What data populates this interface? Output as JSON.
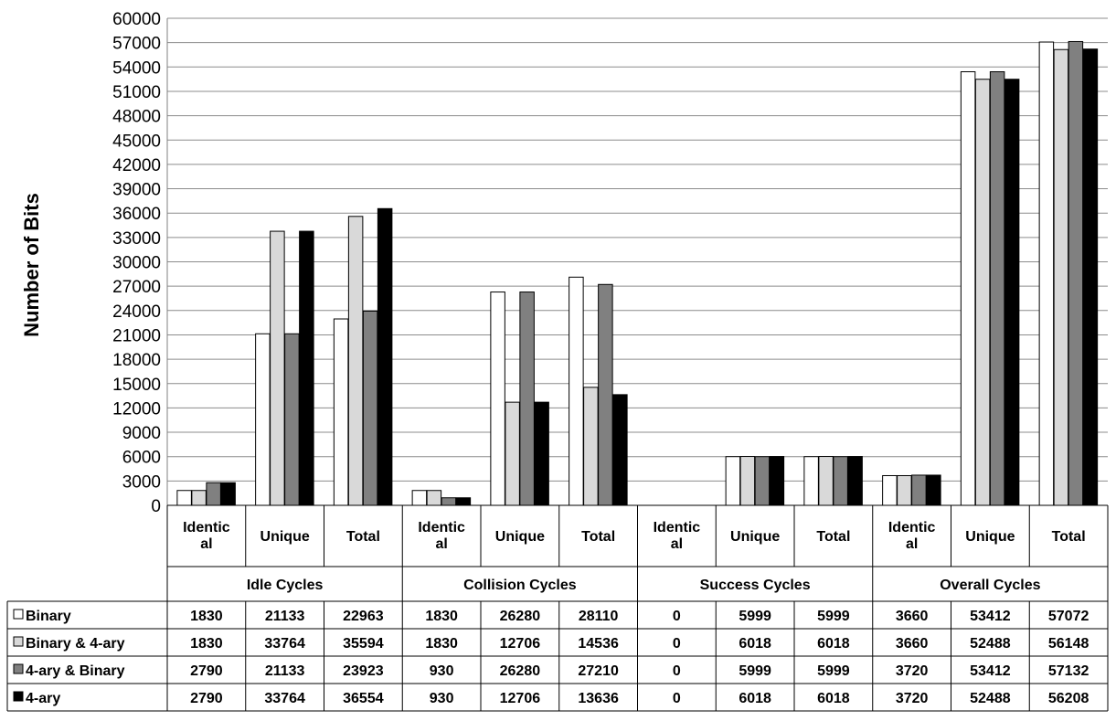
{
  "chart_data": {
    "type": "bar",
    "title": "",
    "xlabel": "",
    "ylabel": "Number of Bits",
    "ylim": [
      0,
      60000
    ],
    "ytick_step": 3000,
    "ytick_labels": [
      "0",
      "3000",
      "6000",
      "9000",
      "12000",
      "15000",
      "18000",
      "21000",
      "24000",
      "27000",
      "30000",
      "33000",
      "36000",
      "39000",
      "42000",
      "45000",
      "48000",
      "51000",
      "54000",
      "57000",
      "60000"
    ],
    "grid": true,
    "legend": "data-table-left",
    "groups": [
      "Idle Cycles",
      "Collision Cycles",
      "Success Cycles",
      "Overall Cycles"
    ],
    "categories": [
      [
        "Identic",
        "al"
      ],
      [
        "Unique"
      ],
      [
        "Total"
      ],
      [
        "Identic",
        "al"
      ],
      [
        "Unique"
      ],
      [
        "Total"
      ],
      [
        "Identic",
        "al"
      ],
      [
        "Unique"
      ],
      [
        "Total"
      ],
      [
        "Identic",
        "al"
      ],
      [
        "Unique"
      ],
      [
        "Total"
      ]
    ],
    "series": [
      {
        "name": "Binary",
        "color": "#ffffff",
        "values": [
          1830,
          21133,
          22963,
          1830,
          26280,
          28110,
          0,
          5999,
          5999,
          3660,
          53412,
          57072
        ]
      },
      {
        "name": "Binary & 4-ary",
        "color": "#d9d9d9",
        "values": [
          1830,
          33764,
          35594,
          1830,
          12706,
          14536,
          0,
          6018,
          6018,
          3660,
          52488,
          56148
        ]
      },
      {
        "name": "4-ary & Binary",
        "color": "#808080",
        "values": [
          2790,
          21133,
          23923,
          930,
          26280,
          27210,
          0,
          5999,
          5999,
          3720,
          53412,
          57132
        ]
      },
      {
        "name": "4-ary",
        "color": "#000000",
        "values": [
          2790,
          33764,
          36554,
          930,
          12706,
          13636,
          0,
          6018,
          6018,
          3720,
          52488,
          56208
        ]
      }
    ]
  }
}
